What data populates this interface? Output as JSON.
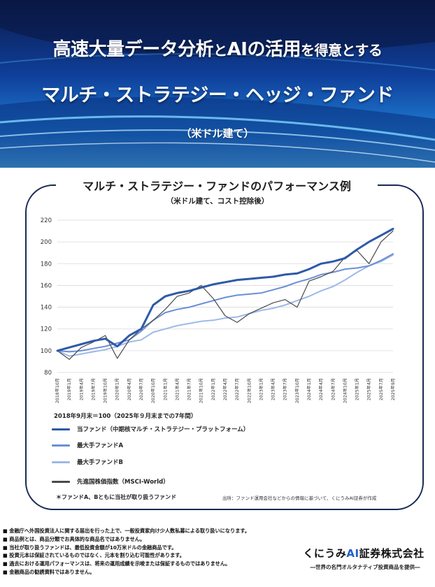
{
  "banner": {
    "title_part1": "高速大量データ分析",
    "title_part2": "と",
    "title_part3": "AIの活用",
    "title_part4": "を得意とする",
    "subtitle": "マルチ・ストラテジー・ヘッジ・ファンド",
    "currency": "（米ドル建て）"
  },
  "card": {
    "title": "マルチ・ストラテジー・ファンドのパフォーマンス例",
    "subtitle": "（米ドル建て、コスト控除後）",
    "base_note": "2018年9月末＝100（2025年９月末までの7年間）",
    "footnote_left": "＊ファンドA、Bともに当社が取り扱うファンド",
    "source_note": "出所：ファンド運用会社などからの情報に基づいて、くにうみAI証券が作成"
  },
  "legend": [
    {
      "label": "当ファンド（中期核マルチ・ストラテジー・プラットフォーム）",
      "color": "#2e5aa8"
    },
    {
      "label": "最大手ファンドA",
      "color": "#6b8fd6"
    },
    {
      "label": "最大手ファンドB",
      "color": "#9db9e8"
    },
    {
      "label": "先進国株価指数（MSCI-World）",
      "color": "#4a4a4a"
    }
  ],
  "chart_data": {
    "type": "line",
    "title": "マルチ・ストラテジー・ファンドのパフォーマンス例",
    "subtitle": "（米ドル建て、コスト控除後）",
    "ylim": [
      80,
      220
    ],
    "yticks": [
      80,
      100,
      120,
      140,
      160,
      180,
      200,
      220
    ],
    "grid": true,
    "legend_position": "bottom",
    "categories": [
      "2018年10月",
      "2019年1月",
      "2019年4月",
      "2019年7月",
      "2019年10月",
      "2020年1月",
      "2020年4月",
      "2020年7月",
      "2020年10月",
      "2021年1月",
      "2021年4月",
      "2021年7月",
      "2021年10月",
      "2022年1月",
      "2022年4月",
      "2022年7月",
      "2022年10月",
      "2023年1月",
      "2023年4月",
      "2023年7月",
      "2023年10月",
      "2024年1月",
      "2024年4月",
      "2024年7月",
      "2024年10月",
      "2025年1月",
      "2025年4月",
      "2025年7月",
      "2025年9月"
    ],
    "series": [
      {
        "name": "当ファンド（中期核マルチ・ストラテジー・プラットフォーム）",
        "color": "#2e5aa8",
        "values": [
          100,
          103,
          106,
          109,
          111,
          104,
          114,
          120,
          142,
          150,
          153,
          155,
          158,
          161,
          163,
          165,
          166,
          167,
          168,
          170,
          171,
          175,
          180,
          182,
          185,
          193,
          200,
          206,
          212
        ]
      },
      {
        "name": "最大手ファンドA",
        "color": "#6b8fd6",
        "values": [
          100,
          99,
          100,
          102,
          104,
          107,
          110,
          118,
          128,
          135,
          138,
          140,
          143,
          146,
          149,
          151,
          152,
          153,
          156,
          159,
          163,
          166,
          170,
          172,
          175,
          176,
          178,
          183,
          189
        ]
      },
      {
        "name": "最大手ファンドB",
        "color": "#9db9e8",
        "values": [
          100,
          95,
          97,
          99,
          101,
          104,
          108,
          110,
          117,
          120,
          123,
          125,
          127,
          128,
          130,
          131,
          134,
          137,
          139,
          142,
          146,
          150,
          155,
          159,
          165,
          172,
          178,
          182,
          188
        ]
      },
      {
        "name": "先進国株価指数（MSCI-World）",
        "color": "#4a4a4a",
        "values": [
          100,
          92,
          103,
          108,
          114,
          93,
          110,
          120,
          128,
          138,
          150,
          153,
          160,
          148,
          132,
          126,
          134,
          139,
          144,
          147,
          140,
          164,
          168,
          173,
          186,
          192,
          180,
          200,
          210
        ]
      }
    ]
  },
  "footer": {
    "disclaimers": [
      "■ 金融庁へ外国投資法人に関する届出を行った上で、一般投資家向け少人数私募による取り扱いになります。",
      "■ 商品例とは、商品分類でお具体的な商品名ではありません。",
      "■ 当社が取り扱うファンドは、最低投資金額が10万米ドルの金融商品です。",
      "■ 投資元本は保証されているものではなく、元本を割り込む可能性があります。",
      "■ 過去における運用パフォーマンスは、将来の運用成績を示唆または保証するものではありません。",
      "■ 金融商品の勧誘資料ではありません。"
    ],
    "company_part1": "くにうみ",
    "company_part2": "AI",
    "company_part3": "証券株式会社",
    "tagline": "―世界の名門オルタナティブ投資商品を提供―"
  }
}
